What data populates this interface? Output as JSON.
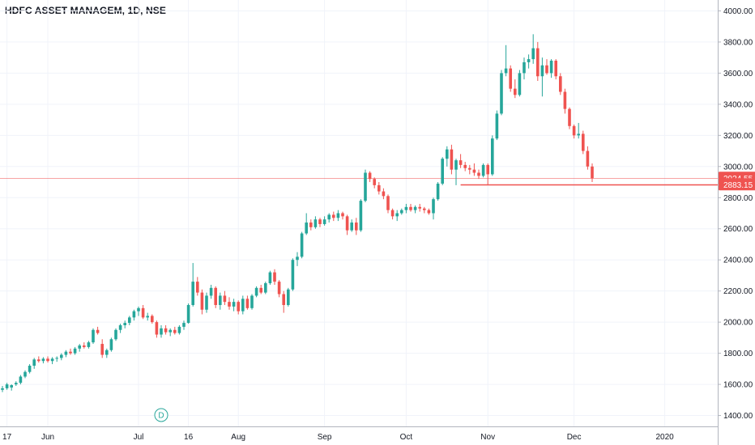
{
  "header": {
    "title": "HDFC ASSET MANAGEM, 1D, NSE"
  },
  "colors": {
    "up": "#26a69a",
    "down": "#ef5350",
    "grid": "#f0f3fa",
    "axis_text": "#131722"
  },
  "event_marker": {
    "label": "D"
  },
  "chart_data": {
    "type": "candlestick",
    "symbol": "HDFC ASSET MANAGEM",
    "interval": "1D",
    "exchange": "NSE",
    "y_ticks": [
      "1400.00",
      "1600.00",
      "1800.00",
      "2000.00",
      "2200.00",
      "2400.00",
      "2600.00",
      "2800.00",
      "3000.00",
      "3200.00",
      "3400.00",
      "3600.00",
      "3800.00",
      "4000.00"
    ],
    "ylim": [
      1330,
      4070
    ],
    "x_ticks": [
      {
        "label": "17",
        "i": 1
      },
      {
        "label": "Jun",
        "i": 10
      },
      {
        "label": "Jul",
        "i": 30
      },
      {
        "label": "16",
        "i": 41
      },
      {
        "label": "Aug",
        "i": 52
      },
      {
        "label": "Sep",
        "i": 71
      },
      {
        "label": "Oct",
        "i": 89
      },
      {
        "label": "Nov",
        "i": 107
      },
      {
        "label": "Dec",
        "i": 126
      },
      {
        "label": "2020",
        "i": 146
      }
    ],
    "price_lines": [
      {
        "value": 2924.55,
        "label": "2924.55",
        "style": "thin"
      },
      {
        "value": 2883.15,
        "label": "2883.15",
        "style": "bold",
        "from_i": 101
      }
    ],
    "candles": [
      [
        1565,
        1590,
        1550,
        1575
      ],
      [
        1575,
        1610,
        1565,
        1600
      ],
      [
        1580,
        1600,
        1560,
        1595
      ],
      [
        1600,
        1620,
        1590,
        1610
      ],
      [
        1610,
        1660,
        1600,
        1650
      ],
      [
        1650,
        1690,
        1640,
        1680
      ],
      [
        1680,
        1730,
        1670,
        1720
      ],
      [
        1720,
        1770,
        1700,
        1760
      ],
      [
        1760,
        1780,
        1740,
        1750
      ],
      [
        1750,
        1775,
        1735,
        1765
      ],
      [
        1765,
        1780,
        1740,
        1750
      ],
      [
        1750,
        1775,
        1730,
        1765
      ],
      [
        1765,
        1780,
        1745,
        1770
      ],
      [
        1770,
        1800,
        1755,
        1790
      ],
      [
        1790,
        1820,
        1775,
        1810
      ],
      [
        1810,
        1830,
        1790,
        1800
      ],
      [
        1800,
        1840,
        1790,
        1830
      ],
      [
        1830,
        1860,
        1810,
        1850
      ],
      [
        1850,
        1870,
        1830,
        1840
      ],
      [
        1840,
        1880,
        1830,
        1870
      ],
      [
        1870,
        1960,
        1860,
        1950
      ],
      [
        1950,
        1970,
        1920,
        1930
      ],
      [
        1860,
        1890,
        1770,
        1790
      ],
      [
        1790,
        1830,
        1770,
        1820
      ],
      [
        1820,
        1900,
        1810,
        1890
      ],
      [
        1890,
        1960,
        1880,
        1950
      ],
      [
        1950,
        1990,
        1930,
        1980
      ],
      [
        1980,
        2010,
        1960,
        1995
      ],
      [
        1995,
        2040,
        1980,
        2030
      ],
      [
        2030,
        2080,
        2010,
        2070
      ],
      [
        2070,
        2100,
        2040,
        2090
      ],
      [
        2090,
        2110,
        2020,
        2030
      ],
      [
        2030,
        2060,
        2010,
        2040
      ],
      [
        2040,
        2050,
        1990,
        2000
      ],
      [
        2000,
        2010,
        1900,
        1920
      ],
      [
        1920,
        1980,
        1900,
        1960
      ],
      [
        1960,
        1980,
        1920,
        1935
      ],
      [
        1935,
        1960,
        1910,
        1950
      ],
      [
        1950,
        1970,
        1920,
        1930
      ],
      [
        1930,
        1980,
        1920,
        1970
      ],
      [
        1970,
        2010,
        1950,
        1995
      ],
      [
        1995,
        2120,
        1990,
        2110
      ],
      [
        2110,
        2380,
        2100,
        2260
      ],
      [
        2260,
        2290,
        2170,
        2190
      ],
      [
        2190,
        2210,
        2050,
        2080
      ],
      [
        2080,
        2190,
        2060,
        2170
      ],
      [
        2170,
        2240,
        2150,
        2220
      ],
      [
        2220,
        2230,
        2090,
        2110
      ],
      [
        2110,
        2190,
        2080,
        2170
      ],
      [
        2170,
        2200,
        2110,
        2130
      ],
      [
        2130,
        2160,
        2080,
        2100
      ],
      [
        2100,
        2150,
        2070,
        2130
      ],
      [
        2130,
        2140,
        2050,
        2070
      ],
      [
        2070,
        2170,
        2050,
        2150
      ],
      [
        2150,
        2170,
        2080,
        2090
      ],
      [
        2090,
        2180,
        2080,
        2170
      ],
      [
        2170,
        2230,
        2160,
        2220
      ],
      [
        2220,
        2240,
        2180,
        2190
      ],
      [
        2190,
        2260,
        2180,
        2250
      ],
      [
        2250,
        2330,
        2240,
        2320
      ],
      [
        2320,
        2340,
        2240,
        2260
      ],
      [
        2260,
        2270,
        2160,
        2180
      ],
      [
        2180,
        2200,
        2060,
        2110
      ],
      [
        2110,
        2220,
        2100,
        2210
      ],
      [
        2210,
        2410,
        2200,
        2400
      ],
      [
        2400,
        2450,
        2360,
        2420
      ],
      [
        2420,
        2580,
        2410,
        2570
      ],
      [
        2570,
        2700,
        2560,
        2640
      ],
      [
        2640,
        2660,
        2590,
        2610
      ],
      [
        2610,
        2680,
        2600,
        2660
      ],
      [
        2660,
        2670,
        2610,
        2630
      ],
      [
        2630,
        2680,
        2620,
        2660
      ],
      [
        2660,
        2700,
        2640,
        2690
      ],
      [
        2690,
        2710,
        2650,
        2670
      ],
      [
        2670,
        2720,
        2650,
        2700
      ],
      [
        2700,
        2710,
        2660,
        2680
      ],
      [
        2680,
        2690,
        2560,
        2590
      ],
      [
        2590,
        2660,
        2580,
        2640
      ],
      [
        2640,
        2670,
        2560,
        2590
      ],
      [
        2590,
        2790,
        2580,
        2780
      ],
      [
        2780,
        2980,
        2770,
        2960
      ],
      [
        2960,
        2970,
        2900,
        2920
      ],
      [
        2920,
        2930,
        2860,
        2880
      ],
      [
        2880,
        2900,
        2820,
        2840
      ],
      [
        2840,
        2860,
        2790,
        2810
      ],
      [
        2810,
        2820,
        2700,
        2720
      ],
      [
        2720,
        2730,
        2660,
        2680
      ],
      [
        2680,
        2720,
        2650,
        2700
      ],
      [
        2700,
        2730,
        2690,
        2720
      ],
      [
        2720,
        2760,
        2700,
        2740
      ],
      [
        2740,
        2760,
        2710,
        2720
      ],
      [
        2720,
        2750,
        2700,
        2740
      ],
      [
        2740,
        2760,
        2710,
        2730
      ],
      [
        2730,
        2740,
        2700,
        2720
      ],
      [
        2720,
        2730,
        2690,
        2700
      ],
      [
        2700,
        2800,
        2660,
        2790
      ],
      [
        2790,
        2900,
        2780,
        2890
      ],
      [
        2890,
        3060,
        2880,
        3050
      ],
      [
        3050,
        3130,
        3000,
        3110
      ],
      [
        3110,
        3140,
        2950,
        2980
      ],
      [
        2980,
        3050,
        2880,
        3040
      ],
      [
        3040,
        3080,
        2990,
        3010
      ],
      [
        3010,
        3030,
        2970,
        2990
      ],
      [
        2990,
        3010,
        2950,
        2980
      ],
      [
        2980,
        3020,
        2940,
        2960
      ],
      [
        2960,
        2980,
        2920,
        2940
      ],
      [
        2940,
        3020,
        2930,
        3010
      ],
      [
        3010,
        3020,
        2880,
        2950
      ],
      [
        2950,
        3200,
        2940,
        3180
      ],
      [
        3180,
        3360,
        3170,
        3340
      ],
      [
        3340,
        3620,
        3330,
        3600
      ],
      [
        3600,
        3780,
        3580,
        3630
      ],
      [
        3630,
        3650,
        3480,
        3500
      ],
      [
        3500,
        3560,
        3440,
        3460
      ],
      [
        3460,
        3620,
        3450,
        3600
      ],
      [
        3600,
        3700,
        3560,
        3670
      ],
      [
        3670,
        3720,
        3630,
        3690
      ],
      [
        3690,
        3850,
        3660,
        3760
      ],
      [
        3760,
        3800,
        3550,
        3580
      ],
      [
        3580,
        3700,
        3450,
        3650
      ],
      [
        3650,
        3690,
        3590,
        3600
      ],
      [
        3600,
        3690,
        3570,
        3680
      ],
      [
        3680,
        3690,
        3560,
        3580
      ],
      [
        3580,
        3600,
        3460,
        3480
      ],
      [
        3480,
        3500,
        3340,
        3370
      ],
      [
        3370,
        3380,
        3240,
        3260
      ],
      [
        3260,
        3270,
        3180,
        3200
      ],
      [
        3200,
        3280,
        3180,
        3210
      ],
      [
        3210,
        3230,
        3080,
        3100
      ],
      [
        3100,
        3130,
        2980,
        3000
      ],
      [
        3000,
        3020,
        2900,
        2924.55
      ]
    ]
  }
}
